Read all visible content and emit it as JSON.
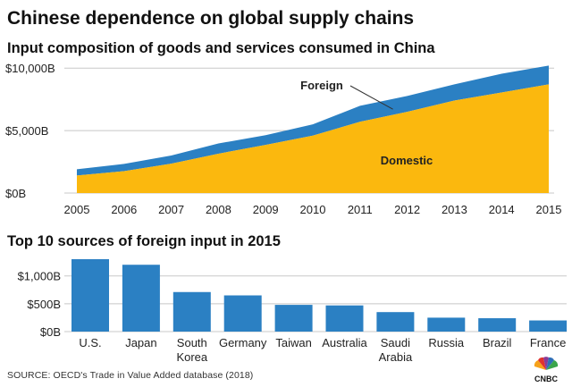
{
  "header": {
    "title": "Chinese dependence on global supply chains",
    "subtitle": "Input composition of goods and services consumed in China"
  },
  "chart_data": [
    {
      "type": "area",
      "stacked": true,
      "x": [
        "2005",
        "2006",
        "2007",
        "2008",
        "2009",
        "2010",
        "2011",
        "2012",
        "2013",
        "2014",
        "2015"
      ],
      "series": [
        {
          "name": "Domestic",
          "values": [
            1400,
            1750,
            2350,
            3150,
            3850,
            4600,
            5700,
            6500,
            7400,
            8050,
            8700
          ],
          "color": "#fbb80e"
        },
        {
          "name": "Foreign",
          "values": [
            500,
            580,
            650,
            820,
            780,
            900,
            1280,
            1270,
            1300,
            1500,
            1500
          ],
          "color": "#2b80c3"
        }
      ],
      "yticks": [
        "$0B",
        "$5,000B",
        "$10,000B"
      ],
      "ytick_values": [
        0,
        5000,
        10000
      ],
      "ylim": [
        0,
        10300
      ],
      "grid": true
    },
    {
      "type": "bar",
      "title": "Top 10 sources of foreign input in 2015",
      "categories": [
        "U.S.",
        "Japan",
        "South Korea",
        "Germany",
        "Taiwan",
        "Australia",
        "Saudi Arabia",
        "Russia",
        "Brazil",
        "France"
      ],
      "category_lines": [
        [
          "U.S."
        ],
        [
          "Japan"
        ],
        [
          "South",
          "Korea"
        ],
        [
          "Germany"
        ],
        [
          "Taiwan"
        ],
        [
          "Australia"
        ],
        [
          "Saudi",
          "Arabia"
        ],
        [
          "Russia"
        ],
        [
          "Brazil"
        ],
        [
          "France"
        ]
      ],
      "values": [
        1300,
        1200,
        710,
        650,
        480,
        470,
        350,
        250,
        240,
        200
      ],
      "yticks": [
        "$0B",
        "$500B",
        "$1,000B"
      ],
      "ytick_values": [
        0,
        500,
        1000
      ],
      "ylim": [
        0,
        1300
      ],
      "color": "#2b80c3",
      "grid": true
    }
  ],
  "footer": {
    "source": "SOURCE: OECD's Trade in Value Added database (2018)",
    "logo_text": "CNBC"
  }
}
